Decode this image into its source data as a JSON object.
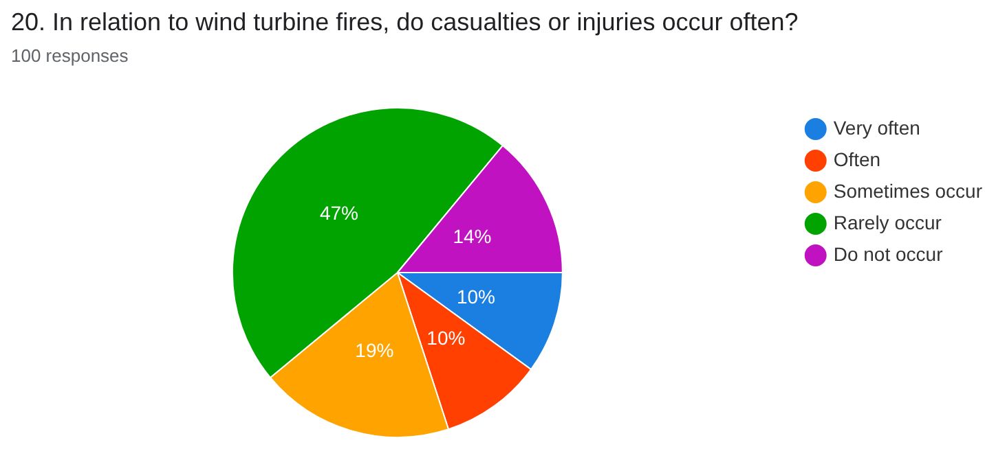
{
  "chart_data": {
    "type": "pie",
    "title": "20. In relation to wind turbine fires, do casualties or injuries occur often?",
    "subtitle": "100 responses",
    "categories": [
      "Very often",
      "Often",
      "Sometimes occur",
      "Rarely occur",
      "Do not occur"
    ],
    "values": [
      10,
      10,
      19,
      47,
      14
    ],
    "colors": [
      "#1a7fe0",
      "#ff4000",
      "#ffa300",
      "#00a300",
      "#c012c0"
    ],
    "value_labels": [
      "10%",
      "10%",
      "19%",
      "47%",
      "14%"
    ],
    "legend": "right"
  }
}
